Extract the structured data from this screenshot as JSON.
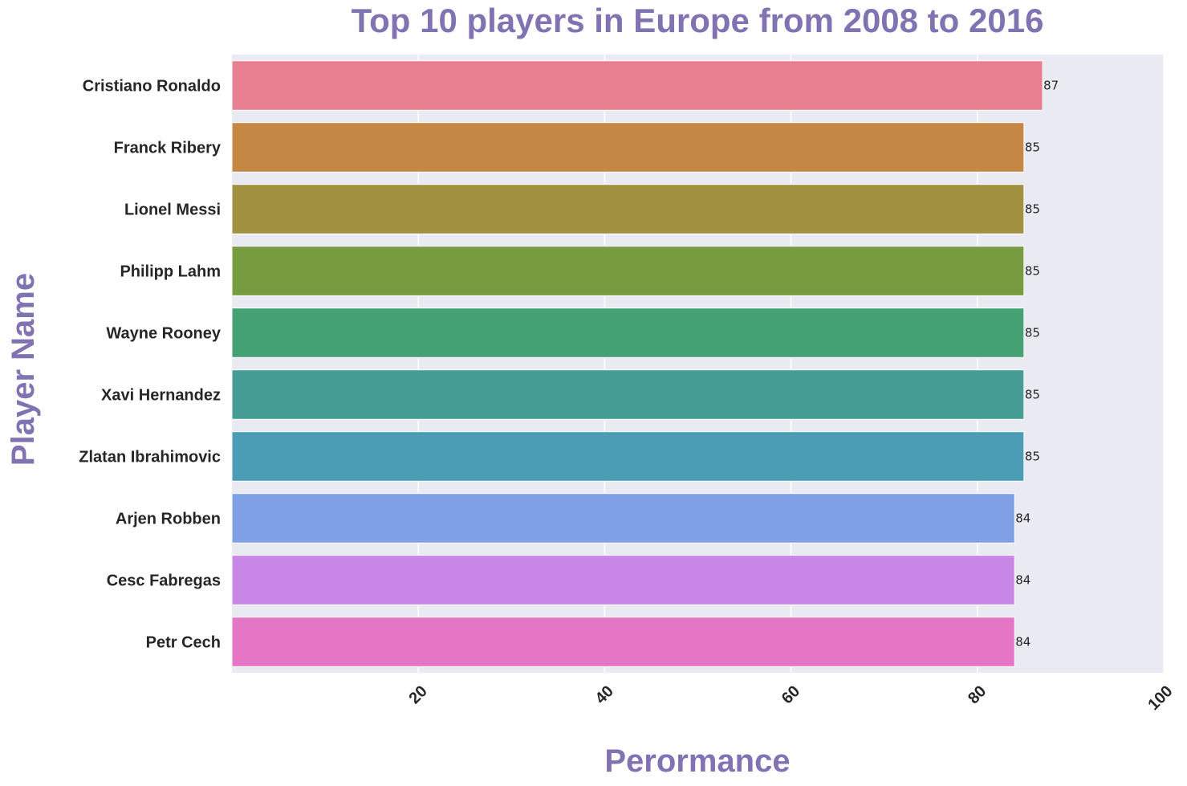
{
  "chart_data": {
    "type": "bar",
    "orientation": "horizontal",
    "title": "Top 10 players in Europe from 2008 to 2016",
    "xlabel": "Perormance",
    "ylabel": "Player Name",
    "categories": [
      "Cristiano Ronaldo",
      "Franck Ribery",
      "Lionel Messi",
      "Philipp Lahm",
      "Wayne Rooney",
      "Xavi Hernandez",
      "Zlatan Ibrahimovic",
      "Arjen Robben",
      "Cesc Fabregas",
      "Petr Cech"
    ],
    "values": [
      87,
      85,
      85,
      85,
      85,
      85,
      85,
      84,
      84,
      84
    ],
    "data_labels": [
      "87",
      "85",
      "85",
      "85",
      "85",
      "85",
      "85",
      "84",
      "84",
      "84"
    ],
    "colors": [
      "#e88092",
      "#c48844",
      "#a19141",
      "#769c3f",
      "#43a174",
      "#459d96",
      "#4a9db4",
      "#80a0e6",
      "#c887e6",
      "#e476c5"
    ],
    "xlim": [
      0,
      100
    ],
    "xticks": [
      20,
      40,
      60,
      80,
      100
    ],
    "xtick_labels": [
      "20",
      "40",
      "60",
      "80",
      "100"
    ],
    "xtick_rotation": 45,
    "grid": true,
    "title_color": "#8173b2",
    "label_color": "#8173b2",
    "background_color": "#eaeaf2"
  }
}
